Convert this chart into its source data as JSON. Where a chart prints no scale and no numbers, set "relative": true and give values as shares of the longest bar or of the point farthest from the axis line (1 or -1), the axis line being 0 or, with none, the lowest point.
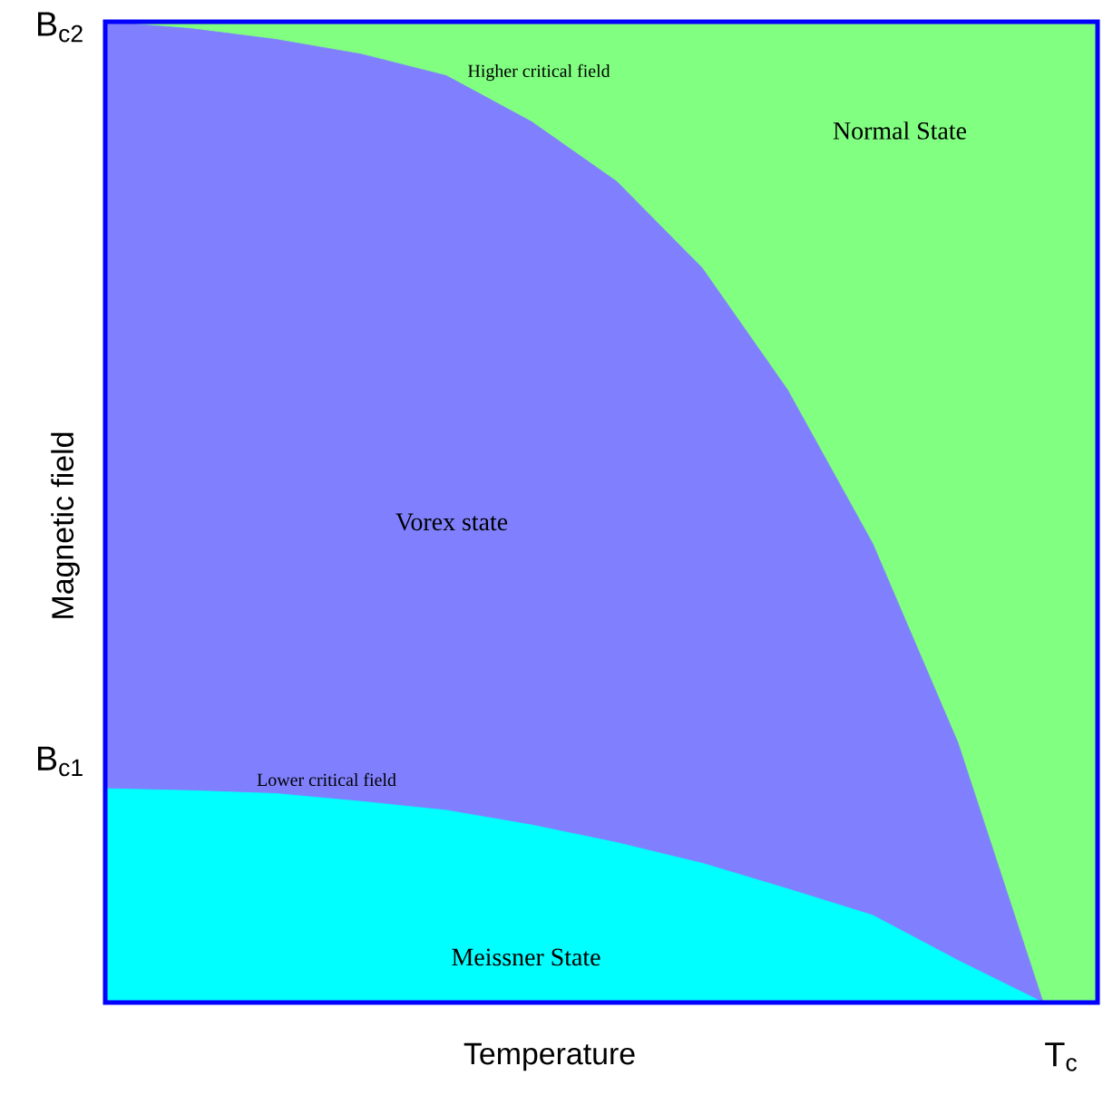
{
  "chart_data": {
    "type": "area",
    "relative": true,
    "xlabel": "Temperature",
    "ylabel": "Magnetic field",
    "categories": [
      null,
      null,
      null,
      null,
      null,
      null,
      null,
      null,
      null,
      null,
      null,
      null
    ],
    "series": [
      {
        "name": "Vorex state",
        "color": "#8080ff",
        "values": [
          1.0,
          0.993,
          0.982,
          0.967,
          0.945,
          0.898,
          0.837,
          0.749,
          0.625,
          0.468,
          0.265,
          0
        ]
      },
      {
        "name": "Meissner State",
        "color": "#00ffff",
        "values": [
          0.218,
          0.216,
          0.213,
          0.205,
          0.196,
          0.181,
          0.163,
          0.142,
          0.116,
          0.089,
          0.043,
          0
        ]
      }
    ],
    "bands": [
      {
        "axis": "y",
        "from": 0,
        "to": 1,
        "label": "Normal State",
        "color": "#80ff80"
      }
    ],
    "annotations": [
      "Higher critical field",
      "Lower critical field",
      "B$_{c2}$",
      "B$_{c1}$",
      "T$_{c}$"
    ]
  }
}
